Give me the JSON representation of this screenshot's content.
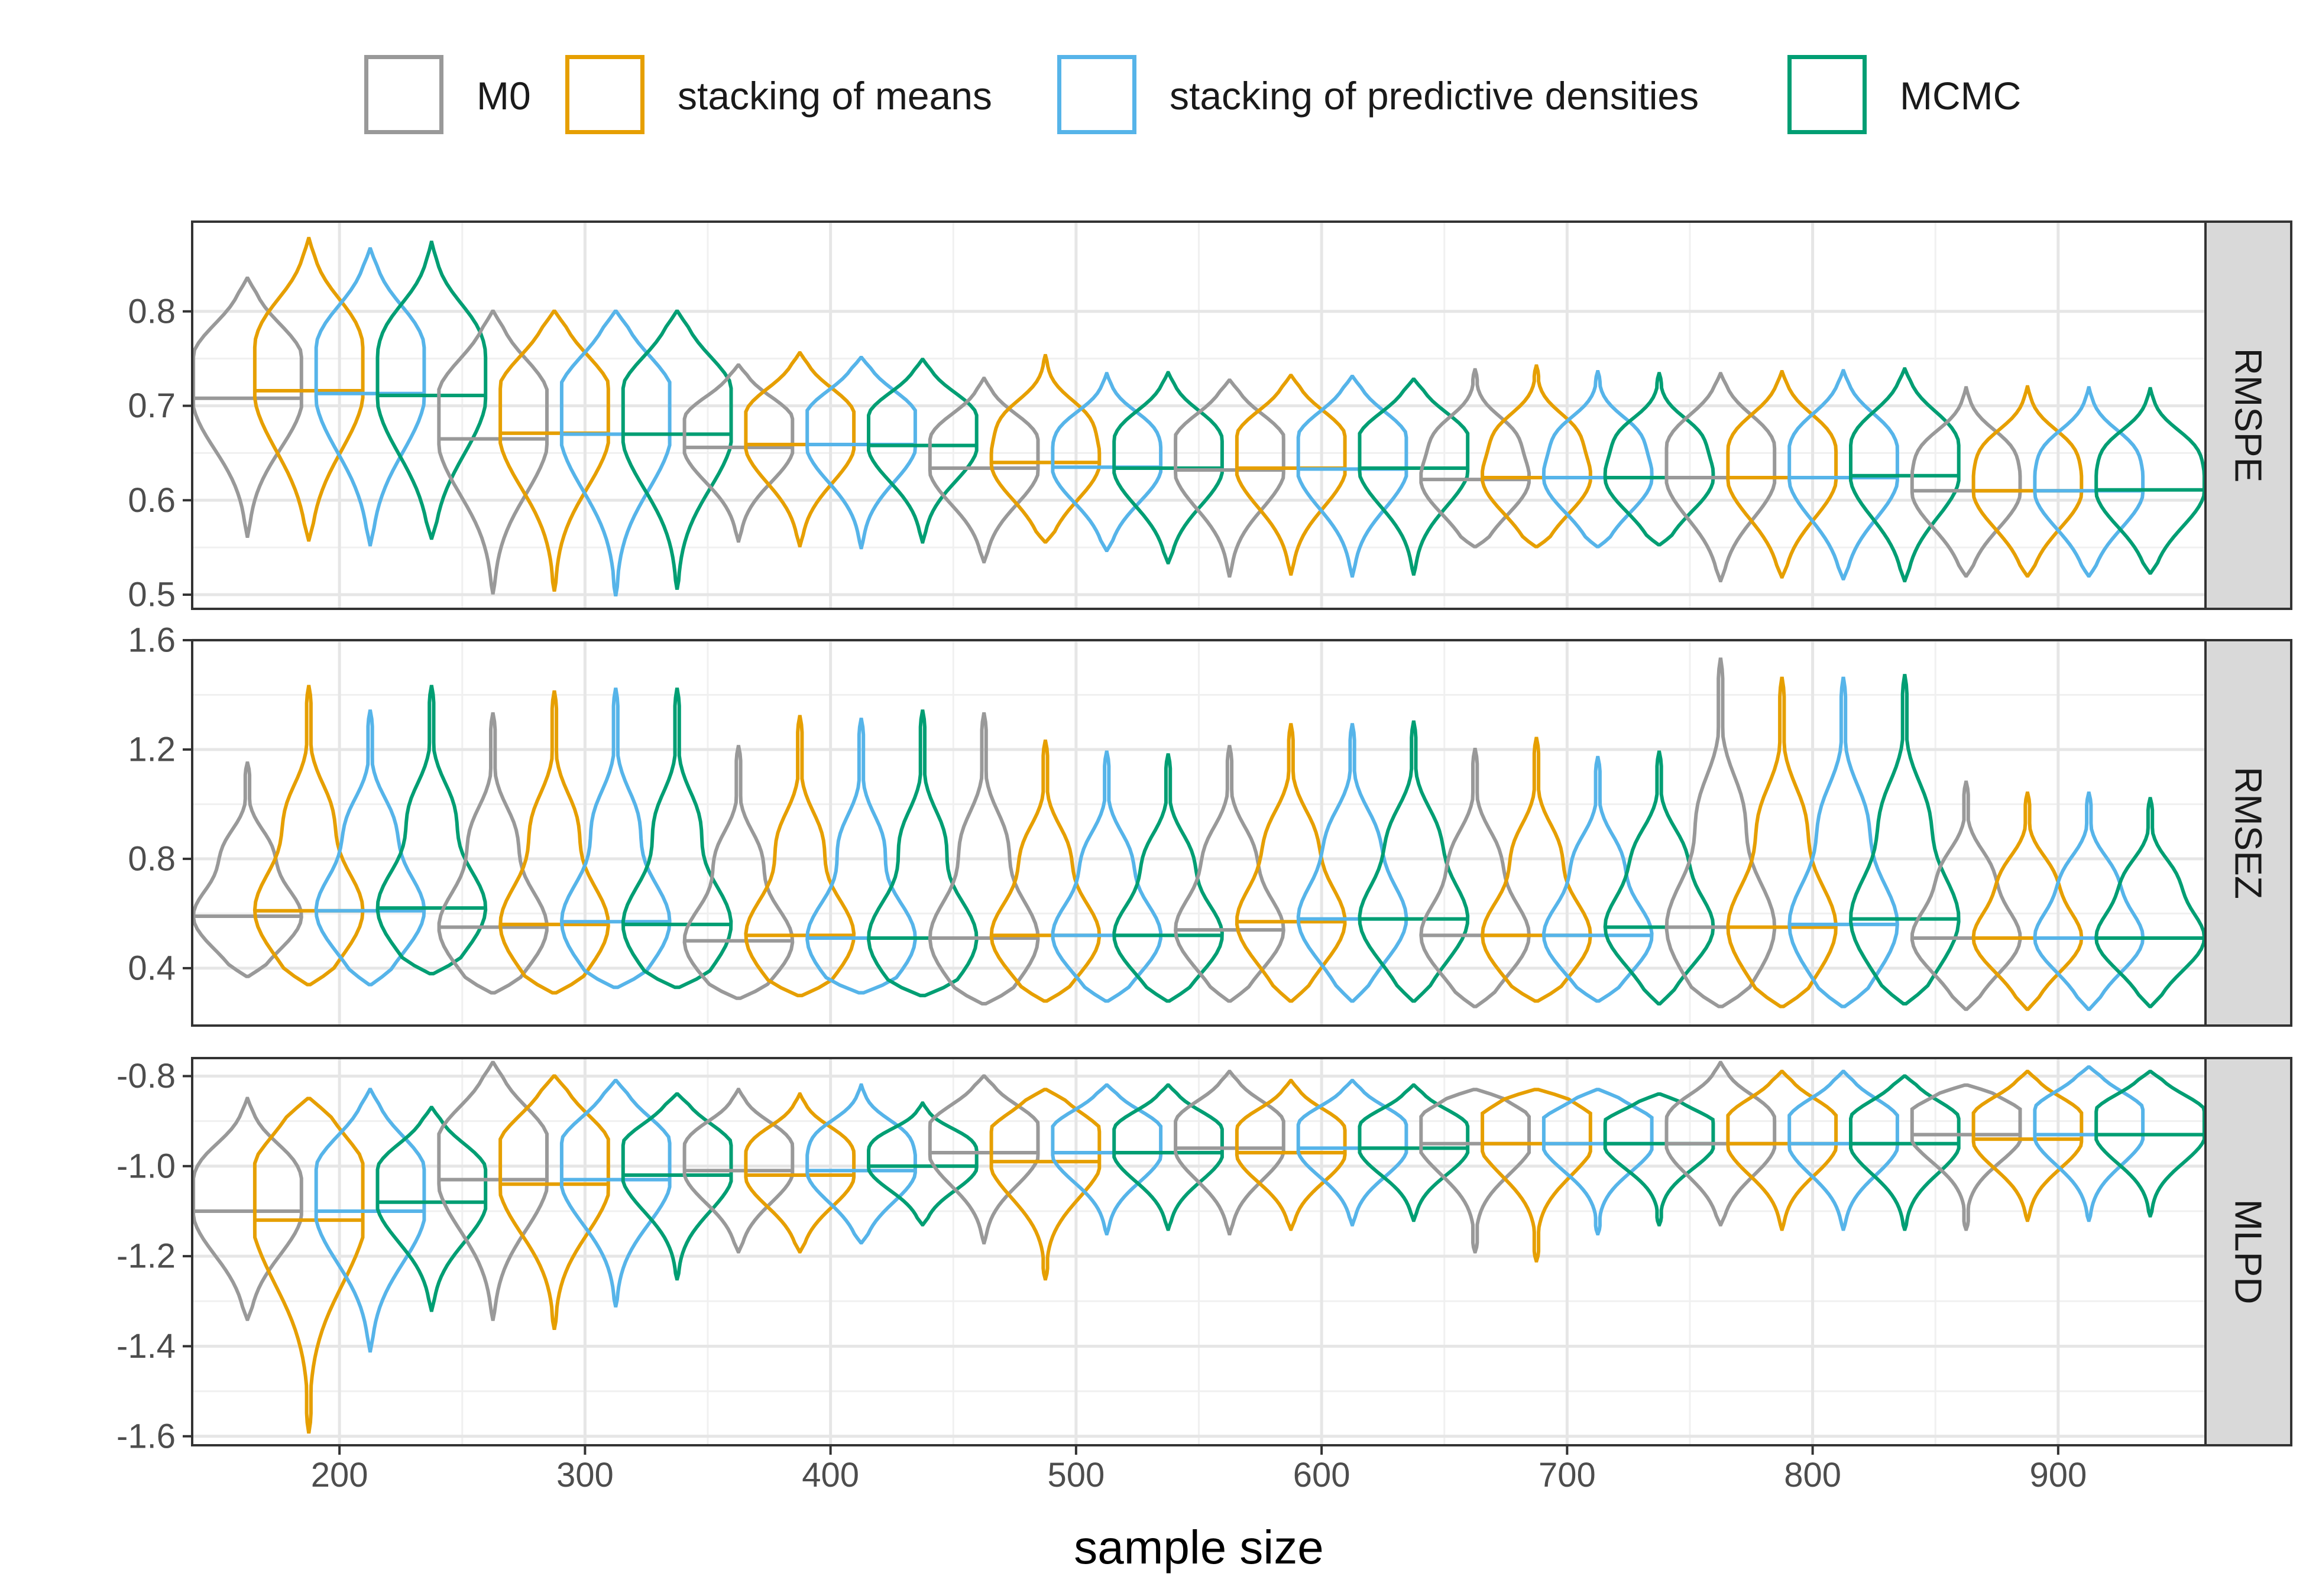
{
  "legend": {
    "position": "top",
    "items": [
      {
        "label": "M0",
        "color": "#999999"
      },
      {
        "label": "stacking of means",
        "color": "#E69F00"
      },
      {
        "label": "stacking of predictive densities",
        "color": "#56B4E9"
      },
      {
        "label": "MCMC",
        "color": "#009E73"
      }
    ]
  },
  "chart_data": {
    "type": "violin",
    "xlabel": "sample size",
    "x_ticks": [
      200,
      300,
      400,
      500,
      600,
      700,
      800,
      900
    ],
    "xlim": [
      140,
      960
    ],
    "groups": [
      200,
      300,
      400,
      500,
      600,
      700,
      800,
      900
    ],
    "series_names": [
      "M0",
      "stacking of means",
      "stacking of predictive densities",
      "MCMC"
    ],
    "grid": true,
    "panels": [
      {
        "strip": "RMSPE",
        "ylim": [
          0.485,
          0.895
        ],
        "y_ticks": [
          0.5,
          0.6,
          0.7,
          0.8
        ],
        "y_tick_labels": [
          "0.5",
          "0.6",
          "0.7",
          "0.8"
        ],
        "medians": [
          [
            0.708,
            0.716,
            0.713,
            0.711
          ],
          [
            0.665,
            0.671,
            0.67,
            0.67
          ],
          [
            0.656,
            0.659,
            0.659,
            0.658
          ],
          [
            0.634,
            0.64,
            0.635,
            0.634
          ],
          [
            0.632,
            0.634,
            0.633,
            0.634
          ],
          [
            0.622,
            0.624,
            0.624,
            0.624
          ],
          [
            0.624,
            0.624,
            0.624,
            0.626
          ],
          [
            0.61,
            0.61,
            0.61,
            0.611
          ]
        ],
        "mins": [
          [
            0.562,
            0.558,
            0.553,
            0.56
          ],
          [
            0.502,
            0.505,
            0.5,
            0.507
          ],
          [
            0.557,
            0.552,
            0.55,
            0.556
          ],
          [
            0.535,
            0.556,
            0.547,
            0.534
          ],
          [
            0.52,
            0.522,
            0.52,
            0.522
          ],
          [
            0.551,
            0.551,
            0.551,
            0.553
          ],
          [
            0.515,
            0.519,
            0.517,
            0.515
          ],
          [
            0.52,
            0.52,
            0.52,
            0.523
          ]
        ],
        "maxs": [
          [
            0.835,
            0.877,
            0.866,
            0.873
          ],
          [
            0.8,
            0.8,
            0.8,
            0.8
          ],
          [
            0.743,
            0.756,
            0.751,
            0.749
          ],
          [
            0.729,
            0.753,
            0.734,
            0.735
          ],
          [
            0.727,
            0.732,
            0.731,
            0.728
          ],
          [
            0.738,
            0.742,
            0.736,
            0.734
          ],
          [
            0.734,
            0.736,
            0.737,
            0.739
          ],
          [
            0.719,
            0.72,
            0.719,
            0.718
          ]
        ]
      },
      {
        "strip": "RMSEZ",
        "ylim": [
          0.19,
          1.6
        ],
        "y_ticks": [
          0.4,
          0.8,
          1.2,
          1.6
        ],
        "y_tick_labels": [
          "0.4",
          "0.8",
          "1.2",
          "1.6"
        ],
        "medians": [
          [
            0.59,
            0.61,
            0.61,
            0.62
          ],
          [
            0.55,
            0.56,
            0.57,
            0.56
          ],
          [
            0.5,
            0.52,
            0.51,
            0.51
          ],
          [
            0.51,
            0.52,
            0.52,
            0.52
          ],
          [
            0.54,
            0.57,
            0.58,
            0.58
          ],
          [
            0.52,
            0.52,
            0.52,
            0.55
          ],
          [
            0.55,
            0.55,
            0.56,
            0.58
          ],
          [
            0.51,
            0.51,
            0.51,
            0.51
          ]
        ],
        "mins": [
          [
            0.37,
            0.34,
            0.34,
            0.38
          ],
          [
            0.31,
            0.31,
            0.33,
            0.33
          ],
          [
            0.29,
            0.3,
            0.31,
            0.3
          ],
          [
            0.27,
            0.28,
            0.28,
            0.28
          ],
          [
            0.28,
            0.28,
            0.28,
            0.28
          ],
          [
            0.26,
            0.28,
            0.28,
            0.27
          ],
          [
            0.26,
            0.26,
            0.26,
            0.27
          ],
          [
            0.25,
            0.25,
            0.25,
            0.26
          ]
        ],
        "maxs": [
          [
            1.15,
            1.43,
            1.34,
            1.43
          ],
          [
            1.33,
            1.41,
            1.42,
            1.42
          ],
          [
            1.21,
            1.32,
            1.31,
            1.34
          ],
          [
            1.33,
            1.23,
            1.19,
            1.18
          ],
          [
            1.21,
            1.29,
            1.29,
            1.3
          ],
          [
            1.2,
            1.24,
            1.17,
            1.19
          ],
          [
            1.53,
            1.46,
            1.46,
            1.47
          ],
          [
            1.08,
            1.04,
            1.04,
            1.02
          ]
        ]
      },
      {
        "strip": "MLPD",
        "ylim": [
          -1.62,
          -0.76
        ],
        "y_ticks": [
          -1.6,
          -1.4,
          -1.2,
          -1.0,
          -0.8
        ],
        "y_tick_labels": [
          "-1.6",
          "-1.4",
          "-1.2",
          "-1.0",
          "-0.8"
        ],
        "medians": [
          [
            -1.1,
            -1.12,
            -1.1,
            -1.08
          ],
          [
            -1.03,
            -1.04,
            -1.03,
            -1.02
          ],
          [
            -1.01,
            -1.02,
            -1.01,
            -1.0
          ],
          [
            -0.97,
            -0.99,
            -0.97,
            -0.97
          ],
          [
            -0.96,
            -0.97,
            -0.96,
            -0.96
          ],
          [
            -0.95,
            -0.95,
            -0.95,
            -0.95
          ],
          [
            -0.95,
            -0.95,
            -0.95,
            -0.95
          ],
          [
            -0.93,
            -0.94,
            -0.93,
            -0.93
          ]
        ],
        "mins": [
          [
            -1.34,
            -1.59,
            -1.41,
            -1.32
          ],
          [
            -1.34,
            -1.36,
            -1.31,
            -1.25
          ],
          [
            -1.19,
            -1.19,
            -1.17,
            -1.13
          ],
          [
            -1.17,
            -1.25,
            -1.15,
            -1.14
          ],
          [
            -1.15,
            -1.14,
            -1.13,
            -1.12
          ],
          [
            -1.19,
            -1.21,
            -1.15,
            -1.13
          ],
          [
            -1.13,
            -1.14,
            -1.14,
            -1.14
          ],
          [
            -1.14,
            -1.12,
            -1.12,
            -1.11
          ]
        ],
        "maxs": [
          [
            -0.85,
            -0.85,
            -0.83,
            -0.87
          ],
          [
            -0.77,
            -0.8,
            -0.81,
            -0.84
          ],
          [
            -0.83,
            -0.84,
            -0.82,
            -0.86
          ],
          [
            -0.8,
            -0.83,
            -0.82,
            -0.82
          ],
          [
            -0.79,
            -0.81,
            -0.81,
            -0.82
          ],
          [
            -0.83,
            -0.83,
            -0.83,
            -0.84
          ],
          [
            -0.77,
            -0.79,
            -0.79,
            -0.8
          ],
          [
            -0.82,
            -0.79,
            -0.78,
            -0.79
          ]
        ]
      }
    ]
  }
}
